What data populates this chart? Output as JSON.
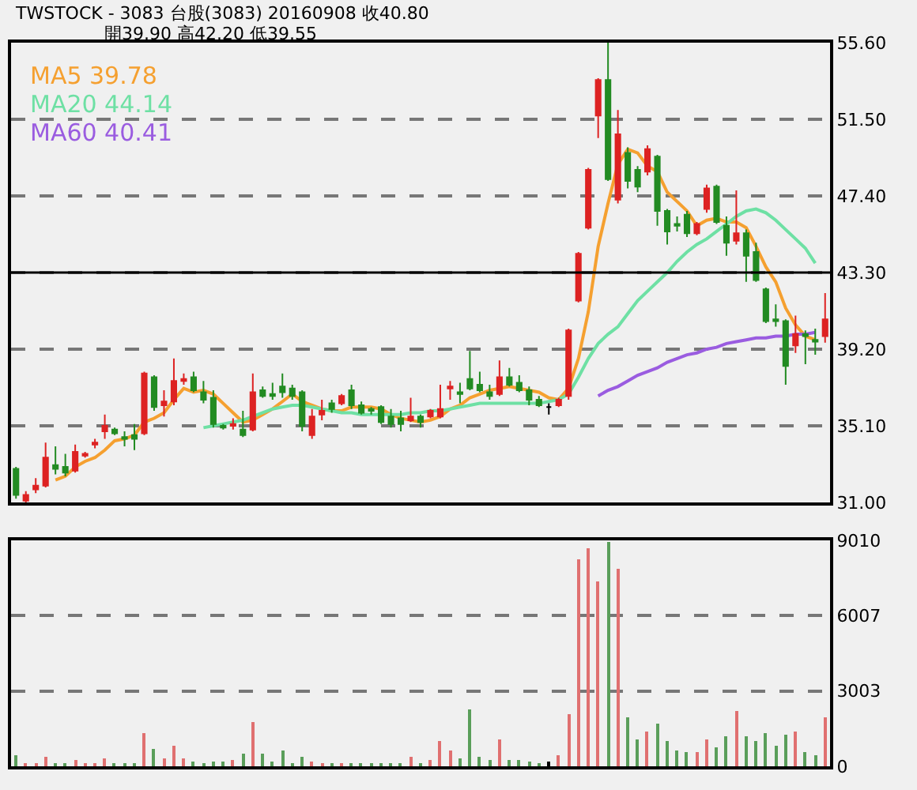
{
  "chart_data": [
    {
      "type": "candlestick",
      "title": "TWSTOCK - 3083 台股(3083) 20160908 收40.80",
      "subtitle": "開39.90 高42.20 低39.55",
      "categories": [
        null,
        null,
        null,
        null,
        null,
        null,
        null,
        null,
        null,
        null,
        null,
        null,
        null,
        null,
        null,
        null,
        null,
        null,
        null,
        null,
        null,
        null,
        null,
        null,
        null,
        null,
        null,
        null,
        null,
        null,
        null,
        null,
        null,
        null,
        null,
        null,
        null,
        null,
        null,
        null,
        null,
        null,
        null,
        null,
        null,
        null,
        null,
        null,
        null,
        null,
        null,
        null,
        null,
        null,
        null,
        null,
        null,
        null,
        null,
        null,
        null,
        null,
        null,
        null,
        null,
        null,
        null,
        null,
        null,
        null,
        null,
        null,
        null,
        null,
        null,
        null,
        null,
        null,
        null,
        null,
        null,
        null,
        null
      ],
      "ohlc": [
        [
          32.8,
          32.9,
          31.2,
          31.4
        ],
        [
          31.1,
          31.6,
          31.0,
          31.4
        ],
        [
          31.7,
          32.3,
          31.5,
          31.9
        ],
        [
          31.9,
          34.2,
          31.8,
          33.4
        ],
        [
          33.0,
          34.0,
          32.5,
          32.8
        ],
        [
          32.9,
          33.6,
          32.4,
          32.6
        ],
        [
          32.7,
          34.1,
          32.6,
          33.7
        ],
        [
          33.5,
          33.7,
          33.4,
          33.6
        ],
        [
          34.1,
          34.4,
          33.9,
          34.2
        ],
        [
          34.8,
          35.7,
          34.4,
          35.1
        ],
        [
          34.9,
          35.0,
          34.6,
          34.7
        ],
        [
          34.5,
          34.8,
          34.0,
          34.4
        ],
        [
          34.6,
          35.2,
          33.8,
          34.4
        ],
        [
          34.7,
          38.0,
          34.6,
          37.9
        ],
        [
          37.7,
          37.8,
          35.9,
          36.1
        ],
        [
          36.2,
          37.0,
          35.6,
          36.4
        ],
        [
          36.4,
          38.7,
          36.2,
          37.5
        ],
        [
          37.5,
          37.9,
          37.3,
          37.6
        ],
        [
          37.7,
          38.0,
          36.9,
          37.0
        ],
        [
          36.9,
          37.5,
          36.3,
          36.5
        ],
        [
          36.6,
          37.0,
          35.0,
          35.2
        ],
        [
          35.1,
          35.2,
          34.9,
          35.0
        ],
        [
          35.1,
          35.5,
          34.9,
          35.2
        ],
        [
          34.9,
          35.9,
          34.5,
          34.6
        ],
        [
          34.9,
          37.9,
          34.8,
          36.9
        ],
        [
          37.0,
          37.2,
          36.6,
          36.7
        ],
        [
          36.8,
          37.4,
          36.5,
          36.7
        ],
        [
          37.2,
          37.9,
          36.6,
          36.9
        ],
        [
          37.1,
          37.3,
          36.5,
          36.7
        ],
        [
          36.9,
          37.0,
          34.8,
          35.1
        ],
        [
          34.6,
          36.0,
          34.4,
          35.6
        ],
        [
          35.7,
          36.5,
          35.4,
          35.9
        ],
        [
          36.3,
          36.5,
          35.8,
          36.0
        ],
        [
          36.3,
          36.8,
          36.2,
          36.7
        ],
        [
          37.0,
          37.3,
          36.0,
          36.2
        ],
        [
          36.2,
          36.4,
          35.7,
          35.8
        ],
        [
          36.0,
          36.1,
          35.7,
          35.9
        ],
        [
          36.1,
          36.2,
          35.2,
          35.3
        ],
        [
          35.6,
          36.0,
          35.0,
          35.2
        ],
        [
          35.5,
          35.9,
          34.8,
          35.2
        ],
        [
          35.4,
          36.6,
          35.3,
          35.6
        ],
        [
          35.6,
          35.7,
          35.0,
          35.3
        ],
        [
          35.6,
          36.0,
          35.5,
          35.9
        ],
        [
          35.6,
          37.3,
          35.5,
          36.0
        ],
        [
          37.1,
          37.5,
          36.5,
          37.2
        ],
        [
          36.9,
          37.4,
          36.3,
          36.8
        ],
        [
          37.6,
          39.1,
          37.0,
          37.1
        ],
        [
          37.3,
          38.0,
          36.9,
          37.0
        ],
        [
          36.9,
          37.3,
          36.5,
          36.7
        ],
        [
          36.8,
          38.6,
          36.7,
          37.7
        ],
        [
          37.7,
          38.2,
          37.2,
          37.3
        ],
        [
          37.4,
          37.8,
          36.9,
          37.0
        ],
        [
          37.0,
          37.2,
          36.2,
          36.5
        ],
        [
          36.5,
          36.7,
          36.1,
          36.2
        ],
        [
          36.1,
          36.3,
          35.7,
          36.1
        ],
        [
          36.2,
          36.6,
          36.1,
          36.5
        ],
        [
          36.7,
          40.3,
          36.5,
          40.2
        ],
        [
          41.8,
          44.4,
          41.7,
          44.3
        ],
        [
          45.7,
          48.9,
          45.6,
          48.8
        ],
        [
          51.7,
          53.7,
          50.5,
          53.6
        ],
        [
          53.6,
          55.6,
          48.2,
          48.3
        ],
        [
          47.2,
          52.0,
          47.0,
          50.7
        ],
        [
          49.7,
          50.0,
          47.8,
          48.2
        ],
        [
          48.8,
          49.0,
          47.6,
          47.9
        ],
        [
          48.7,
          50.1,
          48.5,
          49.9
        ],
        [
          49.5,
          49.6,
          45.8,
          46.6
        ],
        [
          46.6,
          46.7,
          44.8,
          45.5
        ],
        [
          45.9,
          46.3,
          45.5,
          45.8
        ],
        [
          46.4,
          46.6,
          45.2,
          45.4
        ],
        [
          45.4,
          46.0,
          45.3,
          45.9
        ],
        [
          46.7,
          48.0,
          46.5,
          47.8
        ],
        [
          47.9,
          48.0,
          45.9,
          46.0
        ],
        [
          45.8,
          46.3,
          44.2,
          44.9
        ],
        [
          45.0,
          47.7,
          44.8,
          45.4
        ],
        [
          45.4,
          45.6,
          42.8,
          44.2
        ],
        [
          44.4,
          44.9,
          42.8,
          42.9
        ],
        [
          42.4,
          42.5,
          40.6,
          40.7
        ],
        [
          40.8,
          41.6,
          40.4,
          40.7
        ],
        [
          40.7,
          40.8,
          37.3,
          38.3
        ],
        [
          39.4,
          41.0,
          39.0,
          40.0
        ],
        [
          40.0,
          40.2,
          38.4,
          39.9
        ],
        [
          39.7,
          40.3,
          38.9,
          39.6
        ],
        [
          39.9,
          42.2,
          39.55,
          40.8
        ]
      ],
      "colors": [
        "#228b22",
        "#dd2222",
        "#dd2222",
        "#dd2222",
        "#228b22",
        "#228b22",
        "#dd2222",
        "#dd2222",
        "#dd2222",
        "#dd2222",
        "#228b22",
        "#228b22",
        "#228b22",
        "#dd2222",
        "#228b22",
        "#dd2222",
        "#dd2222",
        "#dd2222",
        "#228b22",
        "#228b22",
        "#228b22",
        "#228b22",
        "#dd2222",
        "#228b22",
        "#dd2222",
        "#228b22",
        "#228b22",
        "#228b22",
        "#228b22",
        "#228b22",
        "#dd2222",
        "#dd2222",
        "#228b22",
        "#dd2222",
        "#228b22",
        "#228b22",
        "#228b22",
        "#228b22",
        "#228b22",
        "#228b22",
        "#dd2222",
        "#228b22",
        "#dd2222",
        "#dd2222",
        "#dd2222",
        "#228b22",
        "#228b22",
        "#228b22",
        "#228b22",
        "#dd2222",
        "#228b22",
        "#228b22",
        "#228b22",
        "#228b22",
        "#000000",
        "#dd2222",
        "#dd2222",
        "#dd2222",
        "#dd2222",
        "#dd2222",
        "#228b22",
        "#dd2222",
        "#228b22",
        "#228b22",
        "#dd2222",
        "#228b22",
        "#228b22",
        "#228b22",
        "#228b22",
        "#dd2222",
        "#dd2222",
        "#228b22",
        "#228b22",
        "#dd2222",
        "#228b22",
        "#228b22",
        "#228b22",
        "#228b22",
        "#228b22",
        "#dd2222",
        "#228b22",
        "#228b22",
        "#dd2222"
      ],
      "series": [
        {
          "type": "line",
          "name": "MA5 39.78",
          "color": "#f5a030",
          "values": [
            null,
            null,
            null,
            null,
            32.2,
            32.4,
            32.9,
            33.2,
            33.4,
            33.8,
            34.3,
            34.4,
            34.6,
            35.3,
            35.5,
            35.8,
            36.5,
            37.1,
            36.9,
            37.0,
            36.8,
            36.3,
            35.8,
            35.3,
            35.4,
            35.7,
            36.0,
            36.4,
            36.8,
            36.4,
            36.2,
            36.0,
            35.9,
            35.9,
            36.1,
            36.1,
            36.1,
            36.0,
            35.7,
            35.5,
            35.4,
            35.3,
            35.4,
            35.6,
            36.0,
            36.2,
            36.6,
            36.8,
            37.0,
            37.1,
            37.2,
            37.1,
            37.0,
            36.9,
            36.6,
            36.5,
            37.1,
            38.7,
            41.2,
            44.7,
            47.0,
            49.1,
            49.9,
            49.7,
            49.0,
            48.7,
            47.6,
            47.1,
            46.6,
            45.8,
            46.1,
            46.2,
            46.0,
            46.0,
            45.7,
            44.7,
            43.6,
            42.8,
            41.4,
            40.5,
            39.9,
            39.7,
            null
          ]
        },
        {
          "type": "line",
          "name": "MA20 44.14",
          "color": "#6ee0a4",
          "values": [
            null,
            null,
            null,
            null,
            null,
            null,
            null,
            null,
            null,
            null,
            null,
            null,
            null,
            null,
            null,
            null,
            null,
            null,
            null,
            35.0,
            35.1,
            35.2,
            35.3,
            35.4,
            35.6,
            35.8,
            36.0,
            36.1,
            36.2,
            36.2,
            36.1,
            36.0,
            35.9,
            35.8,
            35.8,
            35.7,
            35.7,
            35.7,
            35.7,
            35.7,
            35.8,
            35.8,
            35.9,
            35.9,
            36.0,
            36.1,
            36.2,
            36.3,
            36.3,
            36.3,
            36.3,
            36.3,
            36.3,
            36.3,
            36.4,
            36.5,
            36.8,
            37.7,
            38.7,
            39.5,
            40.0,
            40.4,
            41.1,
            41.8,
            42.3,
            42.8,
            43.3,
            43.9,
            44.4,
            44.8,
            45.1,
            45.5,
            45.9,
            46.3,
            46.6,
            46.7,
            46.5,
            46.1,
            45.6,
            45.1,
            44.6,
            43.8,
            null
          ]
        },
        {
          "type": "line",
          "name": "MA60 40.41",
          "color": "#9a5ce0",
          "values": [
            null,
            null,
            null,
            null,
            null,
            null,
            null,
            null,
            null,
            null,
            null,
            null,
            null,
            null,
            null,
            null,
            null,
            null,
            null,
            null,
            null,
            null,
            null,
            null,
            null,
            null,
            null,
            null,
            null,
            null,
            null,
            null,
            null,
            null,
            null,
            null,
            null,
            null,
            null,
            null,
            null,
            null,
            null,
            null,
            null,
            null,
            null,
            null,
            null,
            null,
            null,
            null,
            null,
            null,
            null,
            null,
            null,
            null,
            null,
            36.7,
            37.0,
            37.2,
            37.5,
            37.8,
            38.0,
            38.2,
            38.5,
            38.7,
            38.9,
            39.0,
            39.2,
            39.3,
            39.5,
            39.6,
            39.7,
            39.8,
            39.8,
            39.9,
            39.9,
            40.0,
            40.0,
            40.1,
            null
          ]
        }
      ],
      "ylim": [
        31.0,
        55.6
      ],
      "yticks": [
        {
          "value": 31.0,
          "label": "31.00"
        },
        {
          "value": 35.1,
          "label": "35.10"
        },
        {
          "value": 39.2,
          "label": "39.20"
        },
        {
          "value": 43.3,
          "label": "43.30"
        },
        {
          "value": 47.4,
          "label": "47.40"
        },
        {
          "value": 51.5,
          "label": "51.50"
        },
        {
          "value": 55.6,
          "label": "55.60"
        }
      ],
      "ref_lines": [
        {
          "axis": "y",
          "value": 43.3,
          "color": "#000000"
        }
      ],
      "grid": "y",
      "legend": "top left",
      "tick_labels": "y"
    },
    {
      "type": "bar",
      "categories": [
        null,
        null,
        null,
        null,
        null,
        null,
        null,
        null,
        null,
        null,
        null,
        null,
        null,
        null,
        null,
        null,
        null,
        null,
        null,
        null,
        null,
        null,
        null,
        null,
        null,
        null,
        null,
        null,
        null,
        null,
        null,
        null,
        null,
        null,
        null,
        null,
        null,
        null,
        null,
        null,
        null,
        null,
        null,
        null,
        null,
        null,
        null,
        null,
        null,
        null,
        null,
        null,
        null,
        null,
        null,
        null,
        null,
        null,
        null,
        null,
        null,
        null,
        null,
        null,
        null,
        null,
        null,
        null,
        null,
        null,
        null,
        null,
        null,
        null,
        null,
        null,
        null,
        null,
        null,
        null,
        null,
        null,
        null
      ],
      "values": [
        450,
        150,
        150,
        400,
        150,
        150,
        250,
        150,
        150,
        300,
        150,
        150,
        150,
        1350,
        700,
        300,
        850,
        300,
        200,
        150,
        200,
        200,
        250,
        500,
        1750,
        500,
        200,
        650,
        150,
        400,
        200,
        150,
        150,
        150,
        150,
        150,
        150,
        150,
        150,
        150,
        400,
        150,
        250,
        1000,
        650,
        300,
        2300,
        400,
        250,
        1050,
        250,
        250,
        200,
        150,
        200,
        450,
        2050,
        8250,
        8700,
        7350,
        8950,
        7900,
        1950,
        1100,
        1400,
        1700,
        1000,
        650,
        550,
        550,
        1100,
        750,
        1200,
        2200,
        1200,
        1000,
        1300,
        800,
        1250,
        1400,
        550,
        450,
        1950
      ],
      "colors": [
        "#5a9e5a",
        "#e07070",
        "#e07070",
        "#e07070",
        "#5a9e5a",
        "#5a9e5a",
        "#e07070",
        "#e07070",
        "#e07070",
        "#e07070",
        "#5a9e5a",
        "#5a9e5a",
        "#5a9e5a",
        "#e07070",
        "#5a9e5a",
        "#e07070",
        "#e07070",
        "#e07070",
        "#5a9e5a",
        "#5a9e5a",
        "#5a9e5a",
        "#5a9e5a",
        "#e07070",
        "#5a9e5a",
        "#e07070",
        "#5a9e5a",
        "#5a9e5a",
        "#5a9e5a",
        "#5a9e5a",
        "#5a9e5a",
        "#e07070",
        "#e07070",
        "#5a9e5a",
        "#e07070",
        "#5a9e5a",
        "#5a9e5a",
        "#5a9e5a",
        "#5a9e5a",
        "#5a9e5a",
        "#5a9e5a",
        "#e07070",
        "#5a9e5a",
        "#e07070",
        "#e07070",
        "#e07070",
        "#5a9e5a",
        "#5a9e5a",
        "#5a9e5a",
        "#5a9e5a",
        "#e07070",
        "#5a9e5a",
        "#5a9e5a",
        "#5a9e5a",
        "#5a9e5a",
        "#000000",
        "#e07070",
        "#e07070",
        "#e07070",
        "#e07070",
        "#e07070",
        "#5a9e5a",
        "#e07070",
        "#5a9e5a",
        "#5a9e5a",
        "#e07070",
        "#5a9e5a",
        "#5a9e5a",
        "#5a9e5a",
        "#5a9e5a",
        "#e07070",
        "#e07070",
        "#5a9e5a",
        "#5a9e5a",
        "#e07070",
        "#5a9e5a",
        "#5a9e5a",
        "#5a9e5a",
        "#5a9e5a",
        "#5a9e5a",
        "#e07070",
        "#5a9e5a",
        "#5a9e5a",
        "#e07070"
      ],
      "ylim": [
        0,
        9010
      ],
      "yticks": [
        0,
        3003,
        6007,
        9010
      ],
      "grid": "y",
      "tick_labels": "y"
    }
  ]
}
